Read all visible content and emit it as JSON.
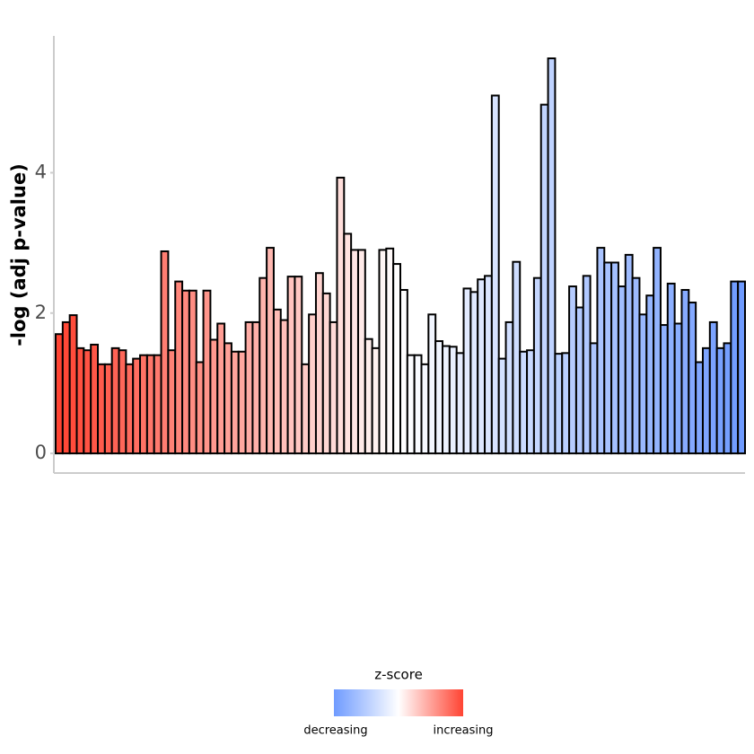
{
  "chart_data": {
    "type": "bar",
    "y_label": "-log (adj p-value)",
    "values": [
      1.7,
      1.87,
      1.97,
      1.5,
      1.47,
      1.55,
      1.27,
      1.27,
      1.5,
      1.47,
      1.27,
      1.35,
      1.4,
      1.4,
      1.4,
      2.88,
      1.47,
      2.45,
      2.32,
      2.32,
      1.3,
      2.32,
      1.62,
      1.85,
      1.57,
      1.45,
      1.45,
      1.87,
      1.87,
      2.5,
      2.93,
      2.05,
      1.9,
      2.52,
      2.52,
      1.27,
      1.98,
      2.57,
      2.28,
      1.87,
      3.93,
      3.13,
      2.9,
      2.9,
      1.63,
      1.5,
      2.9,
      2.92,
      2.7,
      2.33,
      1.4,
      1.4,
      1.27,
      1.98,
      1.6,
      1.53,
      1.52,
      1.43,
      2.35,
      2.3,
      2.48,
      2.53,
      5.1,
      1.35,
      1.87,
      2.73,
      1.45,
      1.47,
      2.5,
      4.97,
      5.63,
      1.42,
      1.43,
      2.38,
      2.08,
      2.53,
      1.57,
      2.93,
      2.72,
      2.72,
      2.38,
      2.83,
      2.5,
      1.98,
      2.25,
      2.93,
      1.83,
      2.42,
      1.85,
      2.33,
      2.15,
      1.3,
      1.5,
      1.87,
      1.5,
      1.57,
      2.45,
      2.45
    ],
    "ylim": [
      -0.28,
      5.95
    ],
    "yticks": [
      0,
      2,
      4
    ],
    "color_high": "#ff4433",
    "color_mid": "#ffffff",
    "color_low": "#6f9bff",
    "legend": {
      "title": "z-score",
      "low_label": "decreasing",
      "high_label": "increasing"
    }
  }
}
